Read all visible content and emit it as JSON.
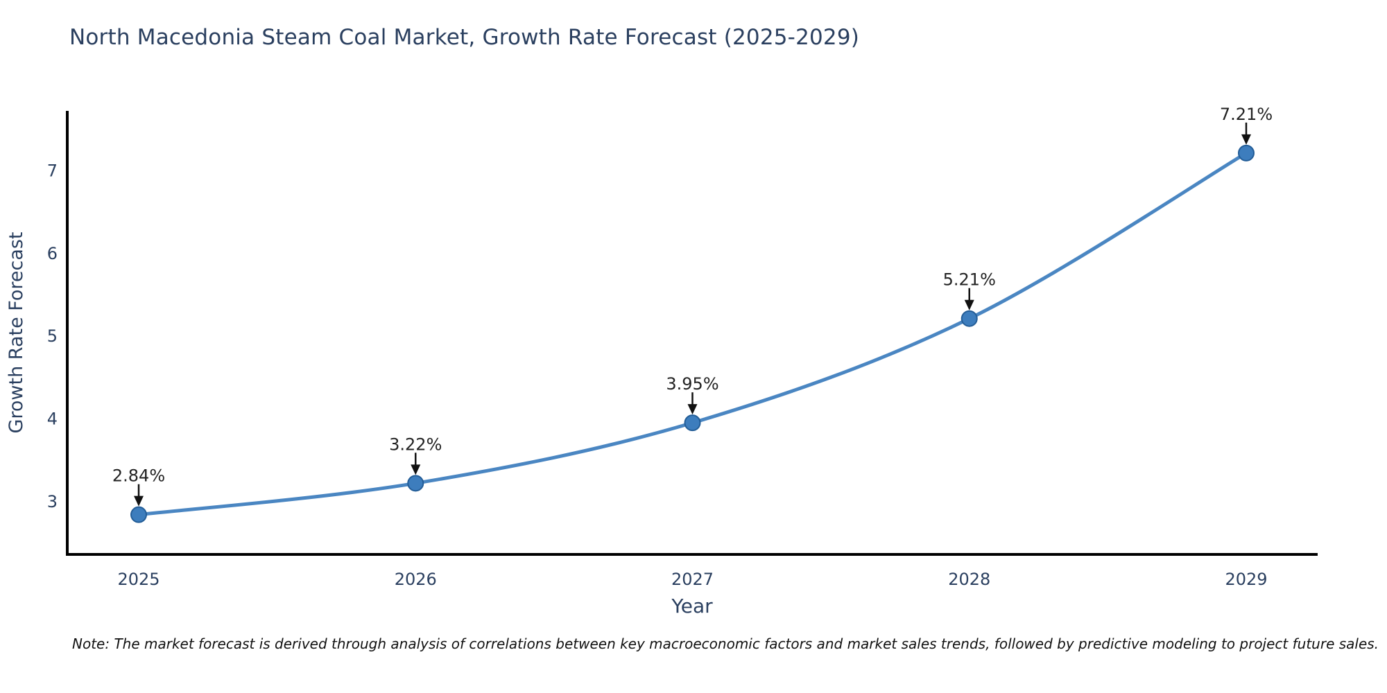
{
  "page": {
    "background": "#ffffff"
  },
  "note": "Note: The market forecast is derived through analysis of correlations between key macroeconomic factors and market sales trends, followed by predictive modeling to project future sales.",
  "chart_data": {
    "type": "line",
    "title": "North Macedonia Steam Coal Market, Growth Rate Forecast (2025-2029)",
    "xlabel": "Year",
    "ylabel": "Growth Rate Forecast",
    "categories": [
      "2025",
      "2026",
      "2027",
      "2028",
      "2029"
    ],
    "values": [
      2.84,
      3.22,
      3.95,
      5.21,
      7.21
    ],
    "point_labels": [
      "2.84%",
      "3.22%",
      "3.95%",
      "5.21%",
      "7.21%"
    ],
    "yticks": [
      3,
      4,
      5,
      6,
      7
    ],
    "ylim": [
      2.36,
      7.72
    ],
    "grid": false,
    "legend": "none",
    "line_shape": "spline",
    "markers": true,
    "annotations": "percent-labels-with-down-arrows",
    "colors": {
      "line": "#4a86c2",
      "marker_fill": "#3d7dbd",
      "marker_edge": "#235d97",
      "axis": "#000000",
      "text": "#2a3f5f",
      "annotation_text": "#222222",
      "arrow": "#111111",
      "note_text": "#111111",
      "background": "#ffffff"
    }
  }
}
